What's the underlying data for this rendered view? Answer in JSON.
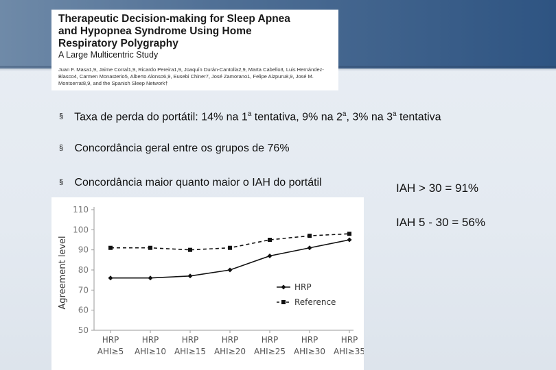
{
  "paper": {
    "title_line1": "Therapeutic Decision-making for Sleep Apnea",
    "title_line2": "and Hypopnea Syndrome Using Home",
    "title_line3": "Respiratory Polygraphy",
    "subtitle": "A Large Multicentric Study",
    "authors": "Juan F. Masa1,9, Jaime Corral1,9, Ricardo Pereira1,9, Joaquín Durán-Cantolla2,9, Marta Cabello3, Luis Hernández-Blasco4, Carmen Monasterio5, Alberto Alonso6,9, Eusebi Chiner7, José Zamorano1, Felipe Aizpuru8,9, José M. Montserrat8,9, and the Spanish Sleep Network†"
  },
  "bullets": [
    {
      "text_a": "Taxa de perda do portátil: 14% na 1",
      "sup_a": "a",
      "text_b": " tentativa, 9% na 2",
      "sup_b": "a",
      "text_c": ", 3% na 3",
      "sup_c": "a",
      "text_d": " tentativa"
    },
    {
      "text": "Concordância geral entre os grupos de 76%"
    },
    {
      "text": "Concordância maior quanto maior o IAH do portátil"
    }
  ],
  "bullet_marker": "§",
  "side_notes": {
    "iah_high": "IAH > 30  = 91%",
    "iah_mid": "IAH 5 - 30 = 56%"
  },
  "chart_data": {
    "type": "line",
    "categories_line1": [
      "HRP",
      "HRP",
      "HRP",
      "HRP",
      "HRP",
      "HRP",
      "HRP"
    ],
    "categories_line2": [
      "AHI≥5",
      "AHI≥10",
      "AHI≥15",
      "AHI≥20",
      "AHI≥25",
      "AHI≥30",
      "AHI≥35"
    ],
    "ylabel": "Agreement level",
    "ylim": [
      50,
      110
    ],
    "yticks": [
      50,
      60,
      70,
      80,
      90,
      100,
      110
    ],
    "grid": false,
    "legend_position": "right",
    "series": [
      {
        "name": "HRP",
        "values": [
          76,
          76,
          77,
          80,
          87,
          91,
          95
        ],
        "style": "solid-diamond",
        "color": "#111111"
      },
      {
        "name": "Reference",
        "values": [
          91,
          91,
          90,
          91,
          95,
          97,
          98
        ],
        "style": "dashed-square",
        "color": "#111111"
      }
    ]
  }
}
